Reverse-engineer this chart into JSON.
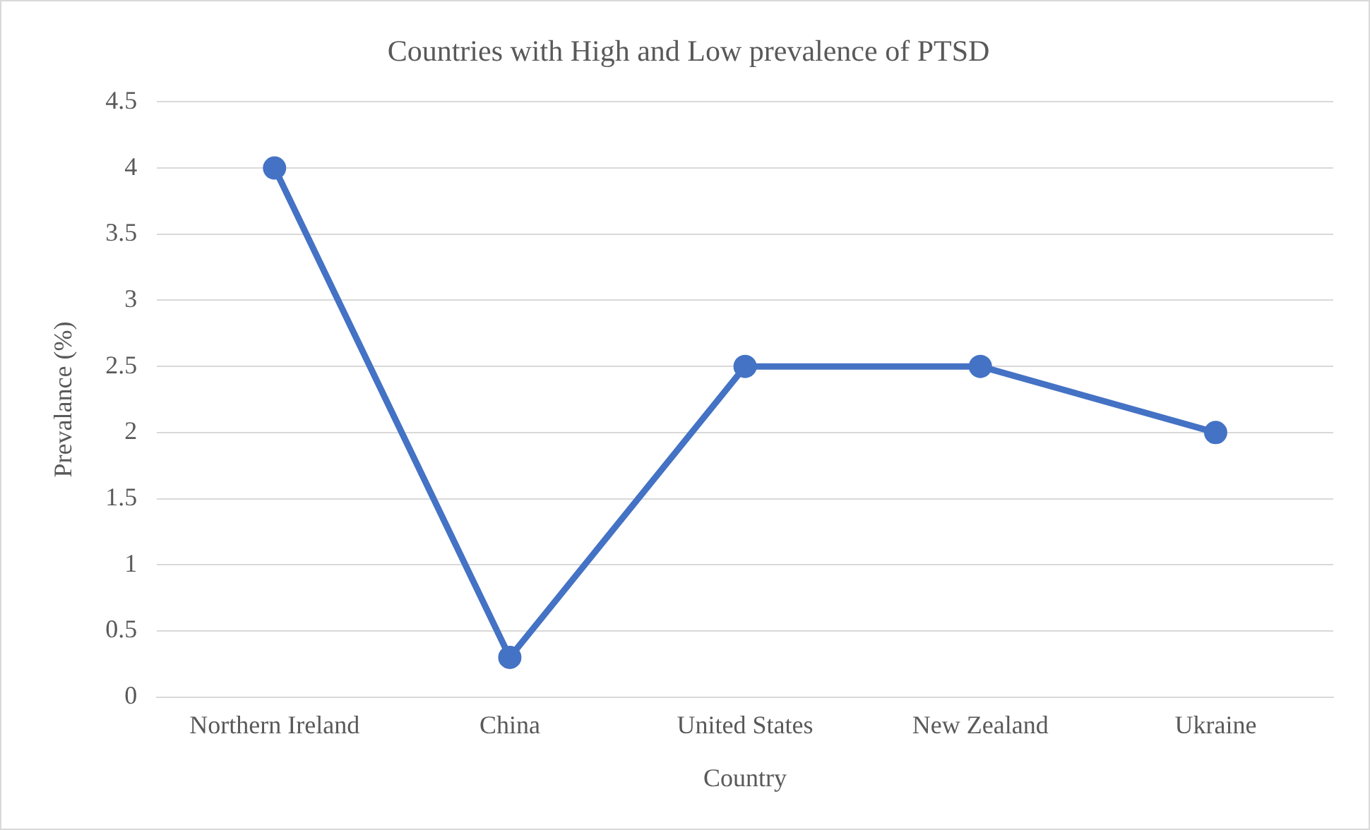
{
  "chart_data": {
    "type": "line",
    "title": "Countries with High and Low prevalence of PTSD",
    "xlabel": "Country",
    "ylabel": "Prevalance (%)",
    "categories": [
      "Northern Ireland",
      "China",
      "United States",
      "New Zealand",
      "Ukraine"
    ],
    "series": [
      {
        "color": "#4472c4",
        "values": [
          4,
          0.3,
          2.5,
          2.5,
          2
        ]
      }
    ],
    "ylim": [
      0,
      4.5
    ],
    "yticks": [
      0,
      0.5,
      1,
      1.5,
      2,
      2.5,
      3,
      3.5,
      4,
      4.5
    ],
    "grid": "y",
    "legend": false,
    "marker": "circle",
    "line_style": "solid"
  }
}
